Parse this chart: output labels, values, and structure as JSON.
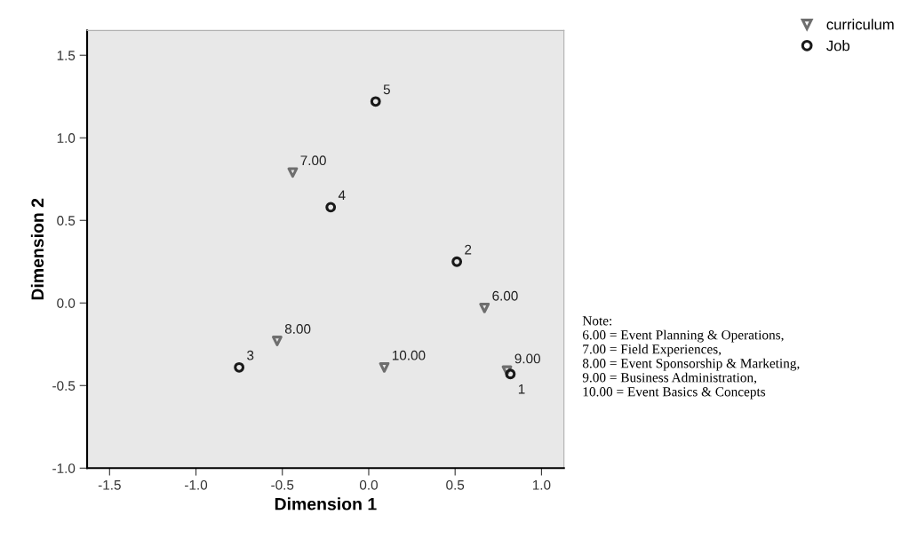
{
  "chart_data": {
    "type": "scatter",
    "xlabel": "Dimension 1",
    "ylabel": "Dimension 2",
    "xlim": [
      -1.63,
      1.13
    ],
    "ylim": [
      -1.0,
      1.65
    ],
    "xticks": [
      {
        "value": -1.5,
        "label": "-1.5"
      },
      {
        "value": -1.0,
        "label": "-1.0"
      },
      {
        "value": -0.5,
        "label": "-0.5"
      },
      {
        "value": 0.0,
        "label": "0.0"
      },
      {
        "value": 0.5,
        "label": "0.5"
      },
      {
        "value": 1.0,
        "label": "1.0"
      }
    ],
    "yticks": [
      {
        "value": -1.0,
        "label": "-1.0"
      },
      {
        "value": -0.5,
        "label": "-0.5"
      },
      {
        "value": 0.0,
        "label": "0.0"
      },
      {
        "value": 0.5,
        "label": "0.5"
      },
      {
        "value": 1.0,
        "label": "1.0"
      },
      {
        "value": 1.5,
        "label": "1.5"
      }
    ],
    "grid": false,
    "legend": "top right",
    "series": [
      {
        "name": "curriculum",
        "color": "#6e6e6e",
        "marker": "triangle",
        "x": [
          0.67,
          -0.44,
          -0.53,
          0.8,
          0.09
        ],
        "values": [
          -0.03,
          0.79,
          -0.23,
          -0.41,
          -0.39
        ]
      },
      {
        "name": "Job",
        "color": "#1a1a1a",
        "marker": "circle",
        "x": [
          0.82,
          0.51,
          -0.75,
          -0.22,
          0.04
        ],
        "values": [
          -0.43,
          0.25,
          -0.39,
          0.58,
          1.22
        ]
      }
    ],
    "annotations": [
      {
        "text": "6.00",
        "x": 0.67,
        "y": -0.03
      },
      {
        "text": "7.00",
        "x": -0.44,
        "y": 0.79
      },
      {
        "text": "8.00",
        "x": -0.53,
        "y": -0.23
      },
      {
        "text": "9.00",
        "x": 0.8,
        "y": -0.41
      },
      {
        "text": "10.00",
        "x": 0.09,
        "y": -0.39
      },
      {
        "text": "1",
        "x": 0.82,
        "y": -0.43
      },
      {
        "text": "2",
        "x": 0.51,
        "y": 0.25
      },
      {
        "text": "3",
        "x": -0.75,
        "y": -0.39
      },
      {
        "text": "4",
        "x": -0.22,
        "y": 0.58
      },
      {
        "text": "5",
        "x": 0.04,
        "y": 1.22
      },
      "Note:\n6.00 = Event Planning & Operations,\n7.00 = Field Experiences,\n8.00 = Event Sponsorship & Marketing,\n9.00 = Business Administration,\n10.00 = Event Basics & Concepts"
    ]
  }
}
